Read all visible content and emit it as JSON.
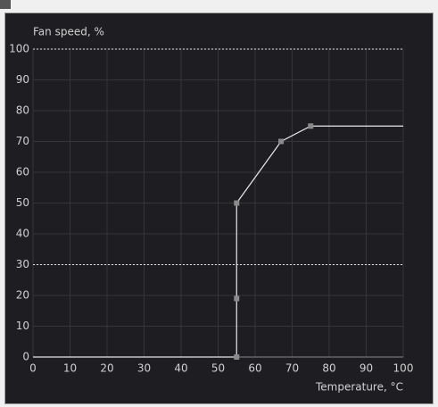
{
  "chart_data": {
    "type": "line",
    "title": "Fan speed, %",
    "xlabel": "Temperature, °C",
    "series": [
      {
        "color": "#e8e8e8",
        "x": [
          0,
          55,
          55,
          55,
          67,
          75,
          100
        ],
        "values": [
          0,
          0,
          19,
          50,
          70,
          75,
          75
        ]
      }
    ],
    "points": {
      "color": "#8a8a8a",
      "x": [
        55,
        55,
        55,
        67,
        75
      ],
      "values": [
        0,
        19,
        50,
        70,
        75
      ]
    },
    "ref_lines": [
      100,
      30
    ],
    "xlim": [
      0,
      100
    ],
    "xticks": [
      0,
      10,
      20,
      30,
      40,
      50,
      60,
      70,
      80,
      90,
      100
    ],
    "ylim": [
      0,
      100
    ],
    "yticks": [
      0,
      10,
      20,
      30,
      40,
      50,
      60,
      70,
      80,
      90,
      100
    ],
    "grid": true
  }
}
